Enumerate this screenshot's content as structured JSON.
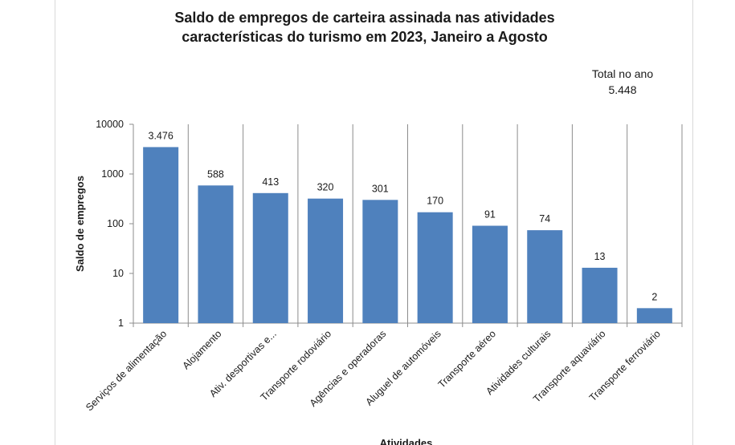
{
  "chart_data": {
    "type": "bar",
    "title_line1": "Saldo de empregos de carteira assinada nas atividades",
    "title_line2": "características do turismo em 2023, Janeiro a Agosto",
    "xlabel": "Atividades",
    "ylabel": "Saldo de empregos",
    "yscale": "log",
    "ylim": [
      1,
      10000
    ],
    "yticks": [
      1,
      10,
      100,
      1000,
      10000
    ],
    "ytick_labels": [
      "1",
      "10",
      "100",
      "1000",
      "10000"
    ],
    "grid": "vertical",
    "categories": [
      "Serviços de alimentação",
      "Alojamento",
      "Ativ. desportivas e...",
      "Transporte rodoviário",
      "Agências e operadoras",
      "Aluguel de automóveis",
      "Transporte aéreo",
      "Atividades culturais",
      "Transporte aquaviário",
      "Transporte ferroviário"
    ],
    "values": [
      3476,
      588,
      413,
      320,
      301,
      170,
      91,
      74,
      13,
      2
    ],
    "value_labels": [
      "3.476",
      "588",
      "413",
      "320",
      "301",
      "170",
      "91",
      "74",
      "13",
      "2"
    ],
    "bar_color": "#4f81bd",
    "total_label": "Total no ano",
    "total_value": "5.448"
  }
}
